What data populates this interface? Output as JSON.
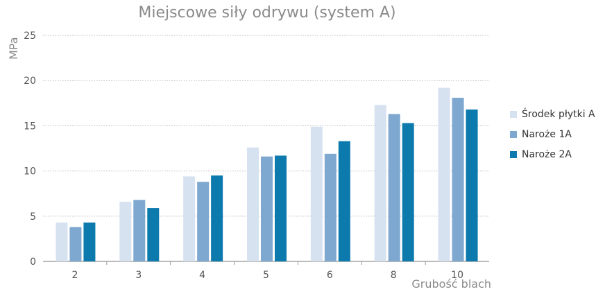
{
  "chart_data": {
    "type": "bar",
    "title": "Miejscowe siły odrywu (system A)",
    "ylabel": "MPa",
    "xlabel": "Grubość blach",
    "ylim": [
      0,
      25
    ],
    "yticks": [
      0,
      5,
      10,
      15,
      20,
      25
    ],
    "grid": true,
    "legend_position": "right",
    "categories": [
      "2",
      "3",
      "4",
      "5",
      "6",
      "8",
      "10"
    ],
    "series": [
      {
        "name": "Środek płytki A",
        "color": "#d6e2f0",
        "values": [
          4.3,
          6.6,
          9.4,
          12.6,
          14.9,
          17.3,
          19.2
        ]
      },
      {
        "name": "Naroże 1A",
        "color": "#7ea8cf",
        "values": [
          3.8,
          6.8,
          8.8,
          11.6,
          11.9,
          16.3,
          18.1
        ]
      },
      {
        "name": "Naroże 2A",
        "color": "#0d7aad",
        "values": [
          4.3,
          5.9,
          9.5,
          11.7,
          13.3,
          15.3,
          16.8
        ]
      }
    ]
  }
}
